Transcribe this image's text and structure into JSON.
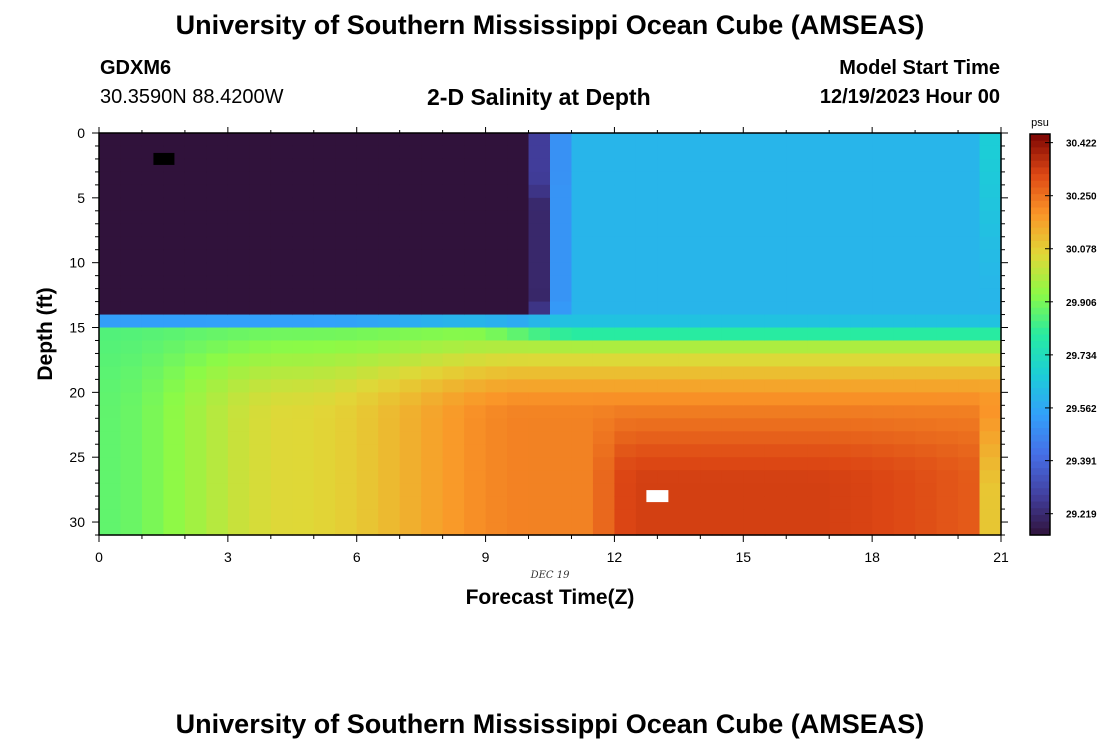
{
  "header": {
    "title": "University of Southern Mississippi Ocean Cube (AMSEAS)",
    "station": "GDXM6",
    "coords": "30.3590N  88.4200W",
    "plot_title": "2-D Salinity at Depth",
    "model_start_label": "Model Start Time",
    "model_start_value": "12/19/2023 Hour 00"
  },
  "footer": {
    "title": "University of Southern Mississippi Ocean Cube (AMSEAS)"
  },
  "chart_data": {
    "type": "heatmap",
    "title": "2-D Salinity at Depth",
    "xlabel": "Forecast Time(Z)",
    "ylabel": "Depth (ft)",
    "date_label": "DEC 19",
    "xlim": [
      0,
      21
    ],
    "ylim": [
      0,
      31
    ],
    "x_ticks": [
      0,
      3,
      6,
      9,
      12,
      15,
      18,
      21
    ],
    "y_ticks": [
      0,
      5,
      10,
      15,
      20,
      25,
      30
    ],
    "colorbar": {
      "unit": "psu",
      "min": 29.15,
      "max": 30.45,
      "ticks": [
        "30.422",
        "30.250",
        "30.078",
        "29.906",
        "29.734",
        "29.562",
        "29.391",
        "29.219"
      ]
    },
    "min_marker": {
      "time": 1.5,
      "depth": 2
    },
    "max_marker": {
      "time": 13,
      "depth": 28
    }
  }
}
